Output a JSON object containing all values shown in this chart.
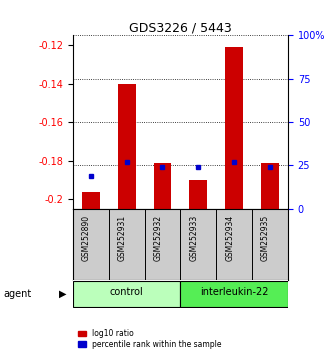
{
  "title": "GDS3226 / 5443",
  "samples": [
    "GSM252890",
    "GSM252931",
    "GSM252932",
    "GSM252933",
    "GSM252934",
    "GSM252935"
  ],
  "groups": [
    {
      "name": "control",
      "indices": [
        0,
        1,
        2
      ],
      "color": "#bbffbb"
    },
    {
      "name": "interleukin-22",
      "indices": [
        3,
        4,
        5
      ],
      "color": "#55ee55"
    }
  ],
  "log10_ratio": [
    -0.196,
    -0.14,
    -0.181,
    -0.19,
    -0.121,
    -0.181
  ],
  "percentile_rank": [
    19,
    27,
    24,
    24,
    27,
    24
  ],
  "ylim_left": [
    -0.205,
    -0.115
  ],
  "ylim_right": [
    0,
    100
  ],
  "yticks_left": [
    -0.2,
    -0.18,
    -0.16,
    -0.14,
    -0.12
  ],
  "yticks_right": [
    0,
    25,
    50,
    75,
    100
  ],
  "left_tick_labels": [
    "-0.2",
    "-0.18",
    "-0.16",
    "-0.14",
    "-0.12"
  ],
  "right_tick_labels": [
    "0",
    "25",
    "50",
    "75",
    "100%"
  ],
  "bar_color": "#cc0000",
  "dot_color": "#0000cc",
  "agent_label": "agent",
  "legend_ratio_label": "log10 ratio",
  "legend_rank_label": "percentile rank within the sample",
  "bar_width": 0.5,
  "background_color": "#ffffff",
  "sample_bg_color": "#cccccc"
}
